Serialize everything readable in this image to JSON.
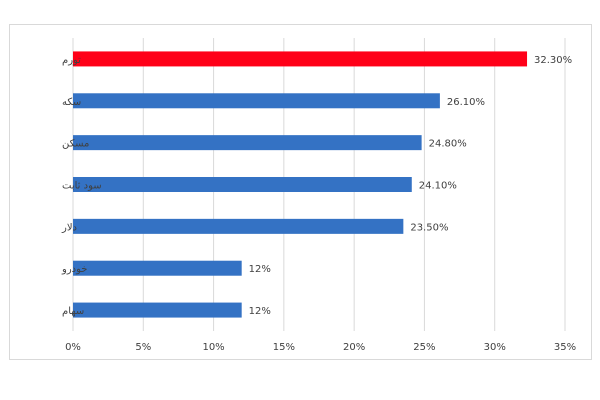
{
  "chart_data": {
    "type": "bar",
    "orientation": "horizontal",
    "categories": [
      "تورم",
      "سکه",
      "مسکن",
      "سود ثابت",
      "دلار",
      "خودرو",
      "سهام"
    ],
    "values": [
      32.3,
      26.1,
      24.8,
      24.1,
      23.5,
      12,
      12
    ],
    "data_labels": [
      "32.30%",
      "26.10%",
      "24.80%",
      "24.10%",
      "23.50%",
      "12%",
      "12%"
    ],
    "bar_colors": [
      "#ff0018",
      "#3472c4",
      "#3472c4",
      "#3472c4",
      "#3472c4",
      "#3472c4",
      "#3472c4"
    ],
    "x_ticks": [
      "0%",
      "5%",
      "10%",
      "15%",
      "20%",
      "25%",
      "30%",
      "35%"
    ],
    "xlim": [
      0,
      35
    ],
    "grid": true,
    "title": "",
    "xlabel": "",
    "ylabel": ""
  }
}
